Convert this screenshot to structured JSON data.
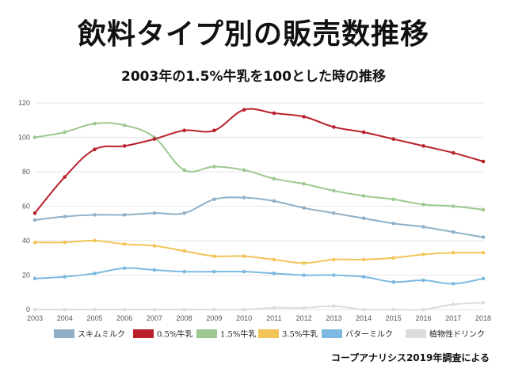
{
  "title": "飲料タイプ別の販売数推移",
  "subtitle": "2003年の1.5%牛乳を100とした時の推移",
  "source": "コープアナリシス2019年調査による",
  "chart_data": {
    "type": "line",
    "x": [
      2003,
      2004,
      2005,
      2006,
      2007,
      2008,
      2009,
      2010,
      2011,
      2012,
      2013,
      2014,
      2015,
      2016,
      2017,
      2018
    ],
    "ylim": [
      0,
      120
    ],
    "yticks": [
      0,
      20,
      40,
      60,
      80,
      100,
      120
    ],
    "grid": "horizontal",
    "legend_position": "bottom",
    "series": [
      {
        "name": "スキムミルク",
        "color": "#8fb0c8",
        "values": [
          52,
          54,
          55,
          55,
          56,
          56,
          64,
          65,
          63,
          59,
          56,
          53,
          50,
          48,
          45,
          42
        ]
      },
      {
        "name": "0.5%牛乳",
        "color": "#b8202a",
        "values": [
          56,
          77,
          93,
          95,
          99,
          104,
          104,
          116,
          114,
          112,
          106,
          103,
          99,
          95,
          91,
          86
        ]
      },
      {
        "name": "1.5%牛乳",
        "color": "#9dc890",
        "values": [
          100,
          103,
          108,
          107,
          100,
          81,
          83,
          81,
          76,
          73,
          69,
          66,
          64,
          61,
          60,
          58
        ]
      },
      {
        "name": "3.5%牛乳",
        "color": "#f2c45a",
        "values": [
          39,
          39,
          40,
          38,
          37,
          34,
          31,
          31,
          29,
          27,
          29,
          29,
          30,
          32,
          33,
          33
        ]
      },
      {
        "name": "バターミルク",
        "color": "#7db9e0",
        "values": [
          18,
          19,
          21,
          24,
          23,
          22,
          22,
          22,
          21,
          20,
          20,
          19,
          16,
          17,
          15,
          18
        ]
      },
      {
        "name": "植物性ドリンク",
        "color": "#dcdcdc",
        "values": [
          0,
          0,
          0,
          0,
          0,
          0,
          0,
          0,
          1,
          1,
          2,
          0,
          0,
          0,
          3,
          4
        ]
      }
    ]
  }
}
